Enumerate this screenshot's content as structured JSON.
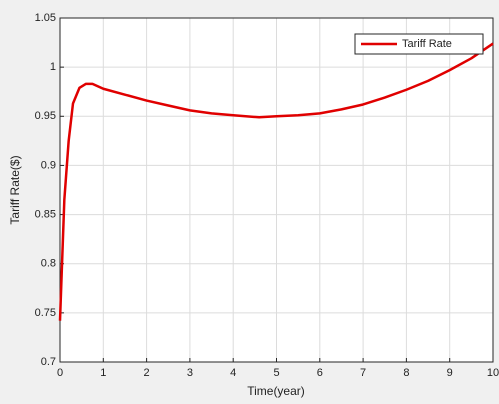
{
  "chart_data": {
    "type": "line",
    "xlabel": "Time(year)",
    "ylabel": "Tariff Rate($)",
    "x": [
      0,
      0.1,
      0.2,
      0.3,
      0.45,
      0.6,
      0.75,
      1,
      1.5,
      2,
      2.5,
      3,
      3.5,
      4,
      4.6,
      5,
      5.5,
      6,
      6.5,
      7,
      7.5,
      8,
      8.5,
      9,
      9.5,
      10
    ],
    "series": [
      {
        "name": "Tariff Rate",
        "color": "#e00000",
        "values": [
          0.742,
          0.865,
          0.925,
          0.963,
          0.979,
          0.983,
          0.983,
          0.978,
          0.972,
          0.966,
          0.961,
          0.956,
          0.953,
          0.951,
          0.949,
          0.95,
          0.951,
          0.953,
          0.957,
          0.962,
          0.969,
          0.977,
          0.986,
          0.997,
          1.009,
          1.024
        ]
      }
    ],
    "xlim": [
      0,
      10
    ],
    "xticks": [
      0,
      1,
      2,
      3,
      4,
      5,
      6,
      7,
      8,
      9,
      10
    ],
    "ylim": [
      0.7,
      1.05
    ],
    "yticks": [
      0.7,
      0.75,
      0.8,
      0.85,
      0.9,
      0.95,
      1,
      1.05
    ],
    "grid": true,
    "legend": "upper right"
  }
}
